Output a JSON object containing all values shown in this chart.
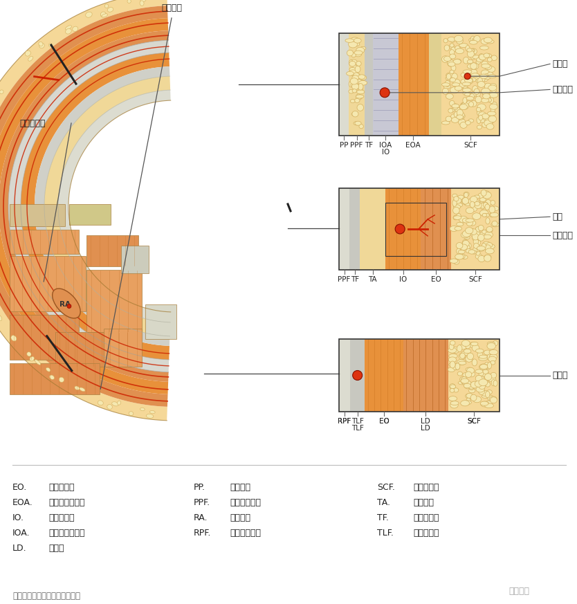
{
  "bg_color": "#ffffff",
  "title_bottom": "腹壁前外侧血管在腹壁中的分布",
  "box1_right_labels": [
    "皮动脉",
    "肋间动脉"
  ],
  "box2_right_labels": [
    "穿支",
    "肋下动脉"
  ],
  "box3_right_labels": [
    "腰动脉"
  ],
  "label_top": "肌终末支",
  "label_left1": "腹壁下动脉",
  "label_ra": "RA",
  "legend": [
    [
      "EO.",
      "腹外斜肌；",
      "PP.",
      "壁腹膜；",
      "SCF.",
      "皮下脂肪；"
    ],
    [
      "EOA.",
      "腹外斜肌腱膜；",
      "PPF.",
      "腹膜外脂肪；",
      "TA.",
      "腹横肌；"
    ],
    [
      "IO.",
      "腹内斜肌；",
      "RA.",
      "腹直肌；",
      "TF.",
      "腹横筋膜；"
    ],
    [
      "IOA.",
      "腹内斜肌腱膜；",
      "RPF.",
      "腹膜后脂肪；",
      "TLF.",
      "胸腰筋膜；"
    ],
    [
      "LD.",
      "背阔肌"
    ]
  ]
}
